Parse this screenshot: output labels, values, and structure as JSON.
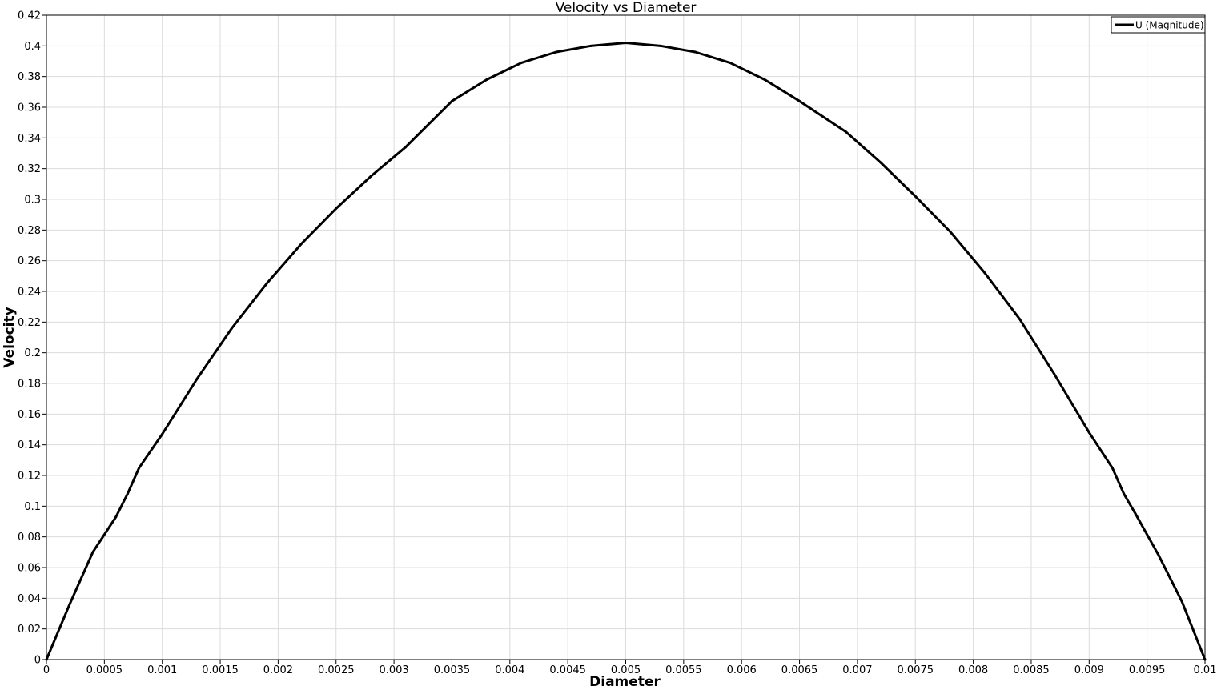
{
  "chart_data": {
    "type": "line",
    "title": "Velocity vs Diameter",
    "xlabel": "Diameter",
    "ylabel": "Velocity",
    "xlim": [
      0,
      0.01
    ],
    "ylim": [
      0,
      0.42
    ],
    "x_ticks": [
      "0",
      "0.0005",
      "0.001",
      "0.0015",
      "0.002",
      "0.0025",
      "0.003",
      "0.0035",
      "0.004",
      "0.0045",
      "0.005",
      "0.0055",
      "0.006",
      "0.0065",
      "0.007",
      "0.0075",
      "0.008",
      "0.0085",
      "0.009",
      "0.0095",
      "0.01"
    ],
    "y_ticks": [
      "0",
      "0.02",
      "0.04",
      "0.06",
      "0.08",
      "0.1",
      "0.12",
      "0.14",
      "0.16",
      "0.18",
      "0.2",
      "0.22",
      "0.24",
      "0.26",
      "0.28",
      "0.3",
      "0.32",
      "0.34",
      "0.36",
      "0.38",
      "0.4",
      "0.42"
    ],
    "grid": true,
    "legend_position": "top-right",
    "series": [
      {
        "name": "U (Magnitude)",
        "color": "#000000",
        "x": [
          0,
          0.0002,
          0.0004,
          0.0006,
          0.0007,
          0.0008,
          0.001,
          0.0013,
          0.0016,
          0.0019,
          0.0022,
          0.0025,
          0.0028,
          0.0031,
          0.0035,
          0.0038,
          0.0041,
          0.0044,
          0.0047,
          0.005,
          0.0053,
          0.0056,
          0.0059,
          0.0062,
          0.0065,
          0.0069,
          0.0072,
          0.0075,
          0.0078,
          0.0081,
          0.0084,
          0.0087,
          0.009,
          0.0092,
          0.0093,
          0.0094,
          0.0096,
          0.0098,
          0.01
        ],
        "y": [
          0,
          0.036,
          0.07,
          0.093,
          0.108,
          0.125,
          0.147,
          0.183,
          0.216,
          0.245,
          0.271,
          0.294,
          0.315,
          0.334,
          0.364,
          0.378,
          0.389,
          0.396,
          0.4,
          0.402,
          0.4,
          0.396,
          0.389,
          0.378,
          0.364,
          0.344,
          0.324,
          0.302,
          0.279,
          0.252,
          0.222,
          0.186,
          0.148,
          0.125,
          0.108,
          0.095,
          0.068,
          0.038,
          0
        ]
      }
    ]
  }
}
